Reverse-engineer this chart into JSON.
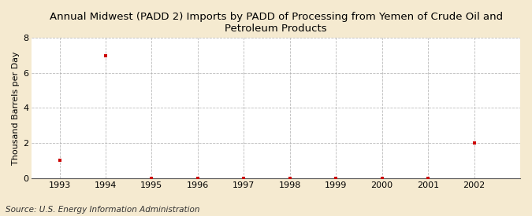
{
  "title": "Annual Midwest (PADD 2) Imports by PADD of Processing from Yemen of Crude Oil and\nPetroleum Products",
  "ylabel": "Thousand Barrels per Day",
  "source": "Source: U.S. Energy Information Administration",
  "outer_background_color": "#f5ead0",
  "plot_background_color": "#ffffff",
  "x_data": [
    1993,
    1994,
    1995,
    1996,
    1997,
    1998,
    1999,
    2000,
    2001,
    2002
  ],
  "y_data": [
    1,
    7,
    0,
    0,
    0,
    0,
    0,
    0,
    0,
    2
  ],
  "xlim": [
    1992.4,
    2003.0
  ],
  "ylim": [
    0,
    8
  ],
  "yticks": [
    0,
    2,
    4,
    6,
    8
  ],
  "xticks": [
    1993,
    1994,
    1995,
    1996,
    1997,
    1998,
    1999,
    2000,
    2001,
    2002
  ],
  "marker_color": "#cc0000",
  "marker": "s",
  "marker_size": 3,
  "grid_color": "#aaaaaa",
  "grid_style": "--",
  "grid_alpha": 0.8,
  "title_fontsize": 9.5,
  "ylabel_fontsize": 8,
  "tick_fontsize": 8,
  "source_fontsize": 7.5
}
